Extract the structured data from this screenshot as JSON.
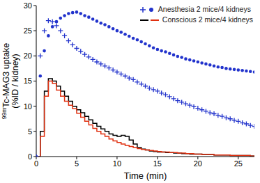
{
  "chart_data": {
    "type": "line",
    "xlabel": "Time (min)",
    "ylabel": "99mTc-MAG3 uptake (%ID / kidney)",
    "xlim": [
      0,
      27
    ],
    "xticks": [
      0,
      5,
      10,
      15,
      20,
      25
    ],
    "ylim": [
      0,
      30
    ],
    "yticks": [
      0,
      5,
      10,
      15,
      20,
      25,
      30
    ],
    "grid": false,
    "legend": "upper right",
    "x": [
      0,
      0.5,
      1,
      1.5,
      2,
      2.5,
      3,
      3.5,
      4,
      4.5,
      5,
      5.5,
      6,
      6.5,
      7,
      7.5,
      8,
      8.5,
      9,
      9.5,
      10,
      10.5,
      11,
      11.5,
      12,
      12.5,
      13,
      13.5,
      14,
      14.5,
      15,
      15.5,
      16,
      16.5,
      17,
      17.5,
      18,
      18.5,
      19,
      19.5,
      20,
      20.5,
      21,
      21.5,
      22,
      22.5,
      23,
      23.5,
      24,
      24.5,
      25,
      25.5,
      26,
      26.5,
      27
    ],
    "series": [
      {
        "name": "Anesthesia 2 mice/4 kidneys",
        "color": "#2233cc",
        "marker": "plus",
        "line_style": "none",
        "values": [
          0,
          20,
          25,
          27,
          26.8,
          26,
          25,
          24,
          23,
          22.2,
          21.5,
          20.9,
          20.3,
          19.8,
          19.3,
          18.8,
          18.4,
          18,
          17.6,
          17.2,
          16.8,
          16.4,
          16,
          15.6,
          15.3,
          14.8,
          14.4,
          14,
          13.6,
          13.3,
          13,
          12.6,
          12.3,
          11.9,
          11.5,
          11.1,
          10.8,
          10.5,
          10.2,
          9.9,
          9.6,
          9.3,
          9,
          8.7,
          8.5,
          8.2,
          8,
          7.7,
          7.5,
          7.2,
          7,
          6.7,
          6.5,
          6.2,
          6
        ]
      },
      {
        "name": "Anesthesia 2 mice/4 kidneys",
        "color": "#2233cc",
        "marker": "circle",
        "line_style": "none",
        "values": [
          0,
          16,
          21,
          24,
          25.8,
          26.8,
          27.5,
          28,
          28.4,
          28.6,
          28.7,
          28.4,
          28,
          27.7,
          27.3,
          26.9,
          26.5,
          26.2,
          25.8,
          25.4,
          25,
          24.7,
          24.3,
          23.9,
          23.5,
          23.2,
          22.8,
          22.4,
          22,
          21.6,
          21.3,
          21,
          20.8,
          20.5,
          20.2,
          19.9,
          19.7,
          19.4,
          19.2,
          19,
          18.8,
          18.6,
          18.4,
          18.2,
          18,
          17.8,
          17.7,
          17.5,
          17.4,
          17.3,
          17.2,
          17.1,
          17,
          16.9,
          16.8
        ]
      },
      {
        "name": "Conscious 2 mice/4 kidneys",
        "color": "#000000",
        "marker": "none",
        "line_style": "step",
        "values": [
          0,
          5,
          13,
          15.5,
          15,
          14,
          13,
          12,
          11,
          10,
          9.3,
          8.7,
          8,
          7.3,
          6.6,
          6,
          5.5,
          5,
          4.5,
          4.2,
          4,
          4.2,
          4,
          3.3,
          2.5,
          1.8,
          1.5,
          1.3,
          1.1,
          1,
          0.9,
          0.9,
          0.8,
          0.8,
          0.7,
          0.7,
          0.6,
          0.6,
          0.5,
          0.5,
          0.5,
          0.4,
          0.4,
          0.4,
          0.3,
          0.3,
          0.3,
          0.3,
          0.2,
          0.2,
          0.2,
          0.2,
          0.2,
          0.1,
          0.1
        ]
      },
      {
        "name": "Conscious 2 mice/4 kidneys",
        "color": "#e03010",
        "marker": "none",
        "line_style": "step",
        "values": [
          0,
          4,
          12,
          15,
          14.5,
          13.2,
          12,
          11,
          10.2,
          9.5,
          8.6,
          7.8,
          7,
          6.3,
          5.6,
          5,
          4.5,
          4,
          3.5,
          3.1,
          2.8,
          2.5,
          2.2,
          2,
          1.8,
          1.6,
          1.4,
          1.3,
          1.2,
          1.1,
          1,
          0.9,
          0.9,
          0.8,
          0.8,
          0.7,
          0.7,
          0.6,
          0.6,
          0.5,
          0.5,
          0.4,
          0.4,
          0.4,
          0.3,
          0.3,
          0.3,
          0.3,
          0.2,
          0.2,
          0.2,
          0.2,
          0.2,
          0.1,
          0.1
        ]
      }
    ]
  }
}
